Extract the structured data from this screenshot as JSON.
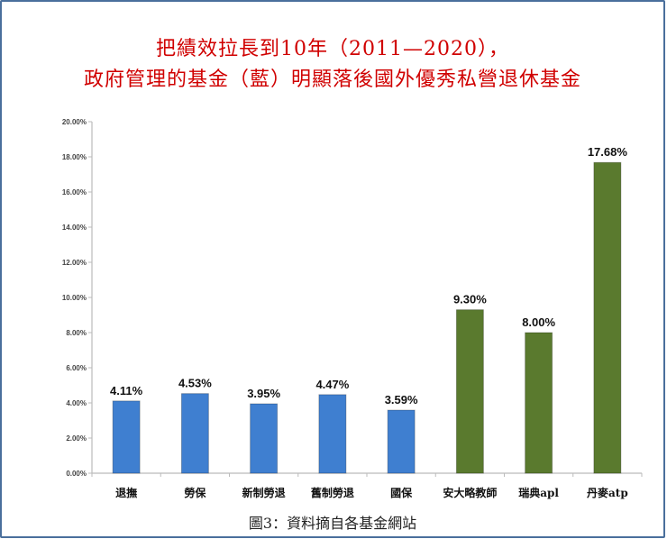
{
  "chart_data": {
    "type": "bar",
    "title": [
      "把績效拉長到10年（2011—2020），",
      "政府管理的基金（藍）明顯落後國外優秀私營退休基金"
    ],
    "categories": [
      "退撫",
      "勞保",
      "新制勞退",
      "舊制勞退",
      "國保",
      "安大略教師",
      "瑞典apl",
      "丹麥atp"
    ],
    "values": [
      4.11,
      4.53,
      3.95,
      4.47,
      3.59,
      9.3,
      8.0,
      17.68
    ],
    "data_labels": [
      "4.11%",
      "4.53%",
      "3.95%",
      "4.47%",
      "3.59%",
      "9.30%",
      "8.00%",
      "17.68%"
    ],
    "colors": [
      "#3f7fd0",
      "#3f7fd0",
      "#3f7fd0",
      "#3f7fd0",
      "#3f7fd0",
      "#5a7a2e",
      "#5a7a2e",
      "#5a7a2e"
    ],
    "ylim": [
      0,
      20
    ],
    "y_ticks": [
      "0.00%",
      "2.00%",
      "4.00%",
      "6.00%",
      "8.00%",
      "10.00%",
      "12.00%",
      "14.00%",
      "16.00%",
      "18.00%",
      "20.00%"
    ],
    "grid": false,
    "xlabel": "",
    "ylabel": ""
  },
  "caption": "圖3：資料摘自各基金網站",
  "title_color": "#d00000"
}
